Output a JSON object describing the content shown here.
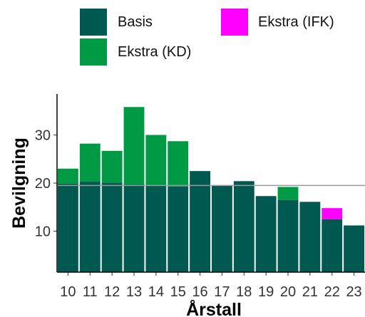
{
  "chart_data": {
    "type": "bar",
    "stacked": true,
    "xlabel": "Årstall",
    "ylabel": "Bevilgning",
    "categories": [
      "10",
      "11",
      "12",
      "13",
      "14",
      "15",
      "16",
      "17",
      "18",
      "19",
      "20",
      "21",
      "22",
      "23"
    ],
    "series": [
      {
        "name": "Basis",
        "color": "#005950",
        "values": [
          19.9,
          20.3,
          20.1,
          19.7,
          19.4,
          19.3,
          22.5,
          19.5,
          20.4,
          17.3,
          16.5,
          16.1,
          12.5,
          11.2
        ]
      },
      {
        "name": "Ekstra (KD)",
        "color": "#009a44",
        "values": [
          3.1,
          7.9,
          6.6,
          16.1,
          10.6,
          9.4,
          0,
          0,
          0,
          0,
          2.7,
          0,
          0,
          0
        ]
      },
      {
        "name": "Ekstra (IFK)",
        "color": "#ff00ff",
        "values": [
          0,
          0,
          0,
          0,
          0,
          0,
          0,
          0,
          0,
          0,
          0,
          0,
          2.3,
          0
        ]
      }
    ],
    "yticks": [
      10,
      20,
      30
    ],
    "ylim": [
      1.5,
      38.5
    ],
    "reference_line": 19.5,
    "grid": false,
    "legend_position": "top"
  }
}
